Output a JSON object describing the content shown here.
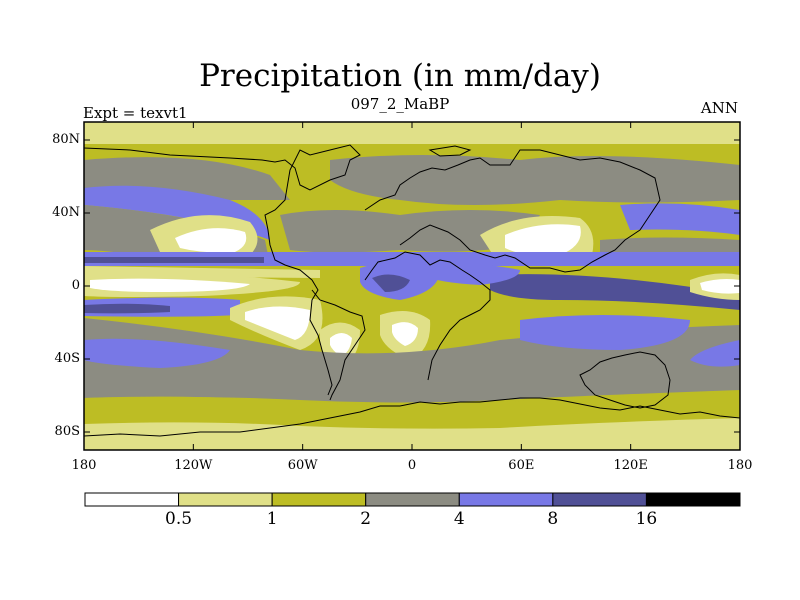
{
  "title": "Precipitation (in mm/day)",
  "subtitle_left": "Expt = texvt1",
  "subtitle_center": "097_2_MaBP",
  "subtitle_right": "ANN",
  "lat_labels": [
    "80N",
    "40N",
    "0",
    "40S",
    "80S"
  ],
  "lon_labels": [
    "180",
    "120W",
    "60W",
    "0",
    "60E",
    "120E",
    "180"
  ],
  "colorbar": {
    "colors": [
      "#ffffff",
      "#e0e088",
      "#bdbd24",
      "#8c8c82",
      "#7878e6",
      "#505096",
      "#000000"
    ],
    "labels": [
      "0.5",
      "1",
      "2",
      "4",
      "8",
      "16"
    ]
  },
  "palette": {
    "lt": "#e0e088",
    "ol": "#bdbd24",
    "gr": "#8c8c82",
    "bl": "#7878e6",
    "db": "#505096",
    "wh": "#ffffff"
  }
}
